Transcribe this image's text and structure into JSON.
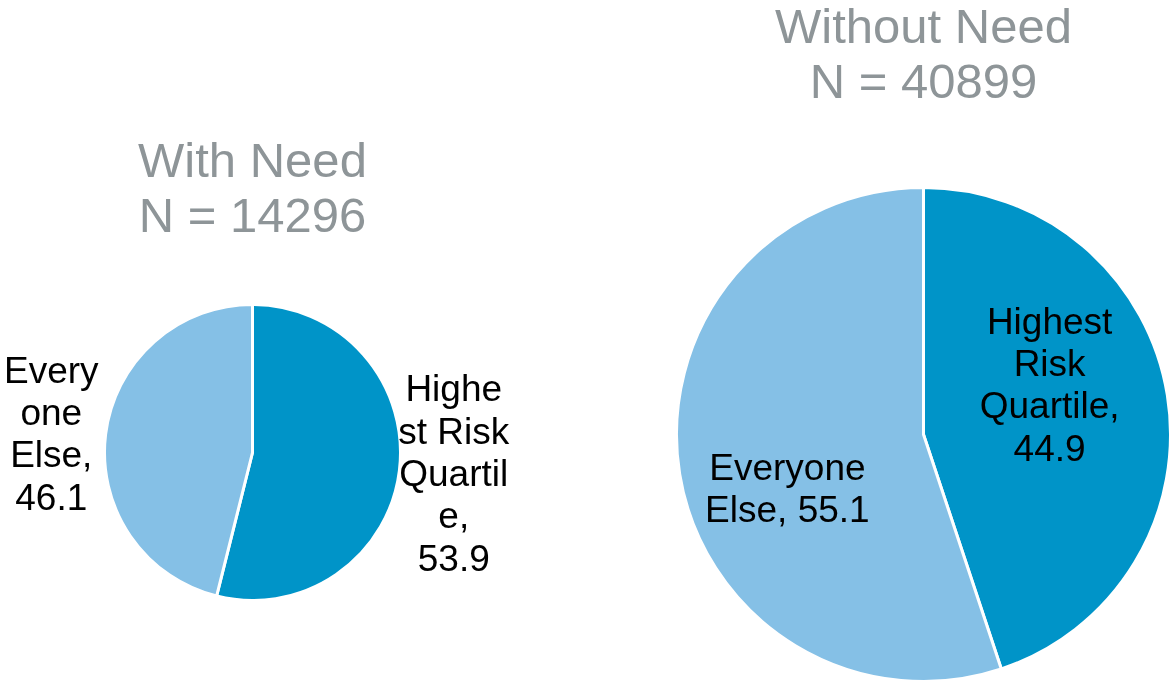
{
  "chart_data": [
    {
      "type": "pie",
      "title": "With Need",
      "subtitle": "N = 14296",
      "categories": [
        null,
        null
      ],
      "values": [
        53.9,
        46.1
      ],
      "colors": [
        "#0094c8",
        "#85c0e6"
      ],
      "value_labels": [
        "Highest Risk Quartile, 53.9",
        "Everyone Else, 46.1"
      ]
    },
    {
      "type": "pie",
      "title": "Without Need",
      "subtitle": "N = 40899",
      "categories": [
        null,
        null
      ],
      "values": [
        44.9,
        55.1
      ],
      "colors": [
        "#0094c8",
        "#85c0e6"
      ],
      "value_labels": [
        "Highest Risk Quartile, 44.9",
        "Everyone Else, 55.1"
      ]
    }
  ]
}
